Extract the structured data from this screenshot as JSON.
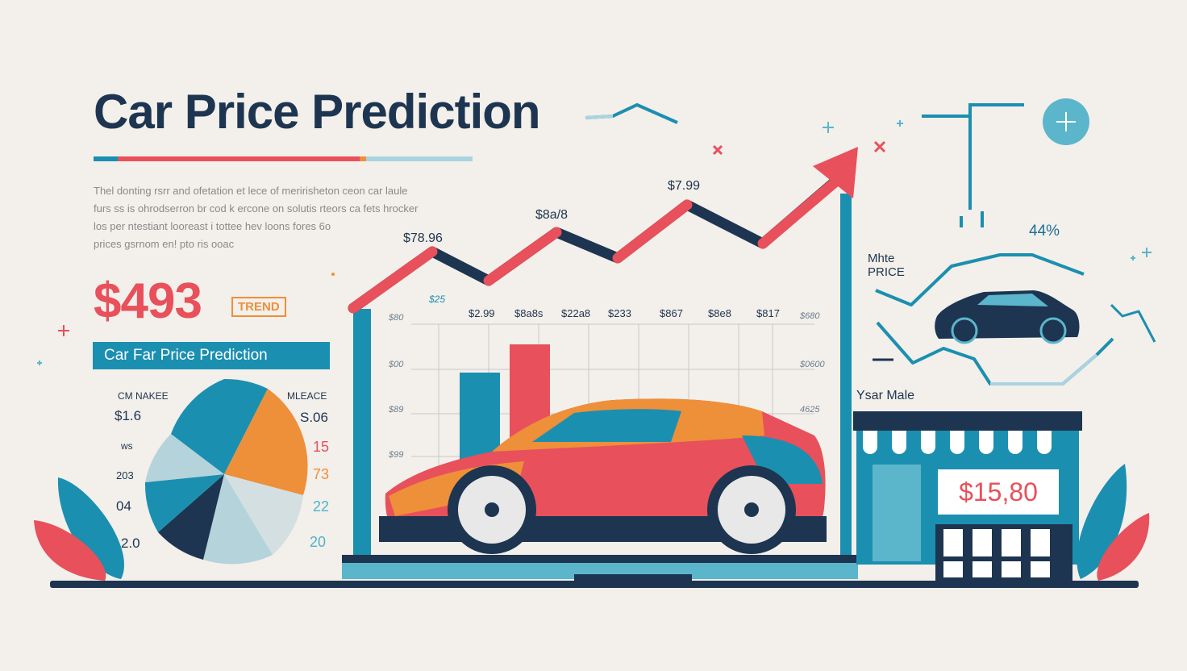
{
  "header": {
    "title": "Car Price Prediction",
    "paragraph_lines": [
      "Thel donting rsrr and ofetation et lece of meririsheton ceon car laule",
      "furs ss is ohrodserron br cod k ercone on solutis rteors ca fets hrocker",
      "los per ntestiant looreast i tottee hev loons  fores 6o",
      "prices gsrnom en! pto ris ooac"
    ]
  },
  "stats": {
    "big_price": "$493",
    "trend_badge": "TREND",
    "banner": "Car Far Price Prediction"
  },
  "pie": {
    "left_header": "CM NAKEE",
    "right_header": "MLEACE",
    "left_values": [
      "$1.6",
      "ws",
      "203",
      "04",
      "2.0"
    ],
    "right_values": [
      "S.06",
      "15",
      "73",
      "22",
      "20"
    ]
  },
  "trend_line": {
    "peaks": [
      "$78.96",
      "$8a/8",
      "$7.99"
    ]
  },
  "bar_chart": {
    "top_labels": [
      "$2.99",
      "$8a8s",
      "$22a8",
      "$233",
      "$867",
      "$8e8",
      "$817"
    ],
    "left_axis": [
      "$25",
      "$80",
      "$00",
      "$89",
      "$99"
    ],
    "right_axis": [
      "$680",
      "$0600",
      "4625"
    ]
  },
  "side_panel": {
    "label_line1": "Mhte",
    "label_line2": "PRICE",
    "percent": "44%",
    "year_label": "Ysar Male",
    "store_price": "$15,80"
  },
  "colors": {
    "navy": "#1d3550",
    "red": "#e8505b",
    "orange": "#ee8f3a",
    "teal": "#1b8fb0",
    "light_teal": "#5bb6cc",
    "pale_blue": "#b8d5dc"
  },
  "icons": [
    "plus-circle-icon",
    "sparkle-icon",
    "trend-arrow-icon",
    "leaf-icon",
    "car-icon",
    "store-icon"
  ]
}
